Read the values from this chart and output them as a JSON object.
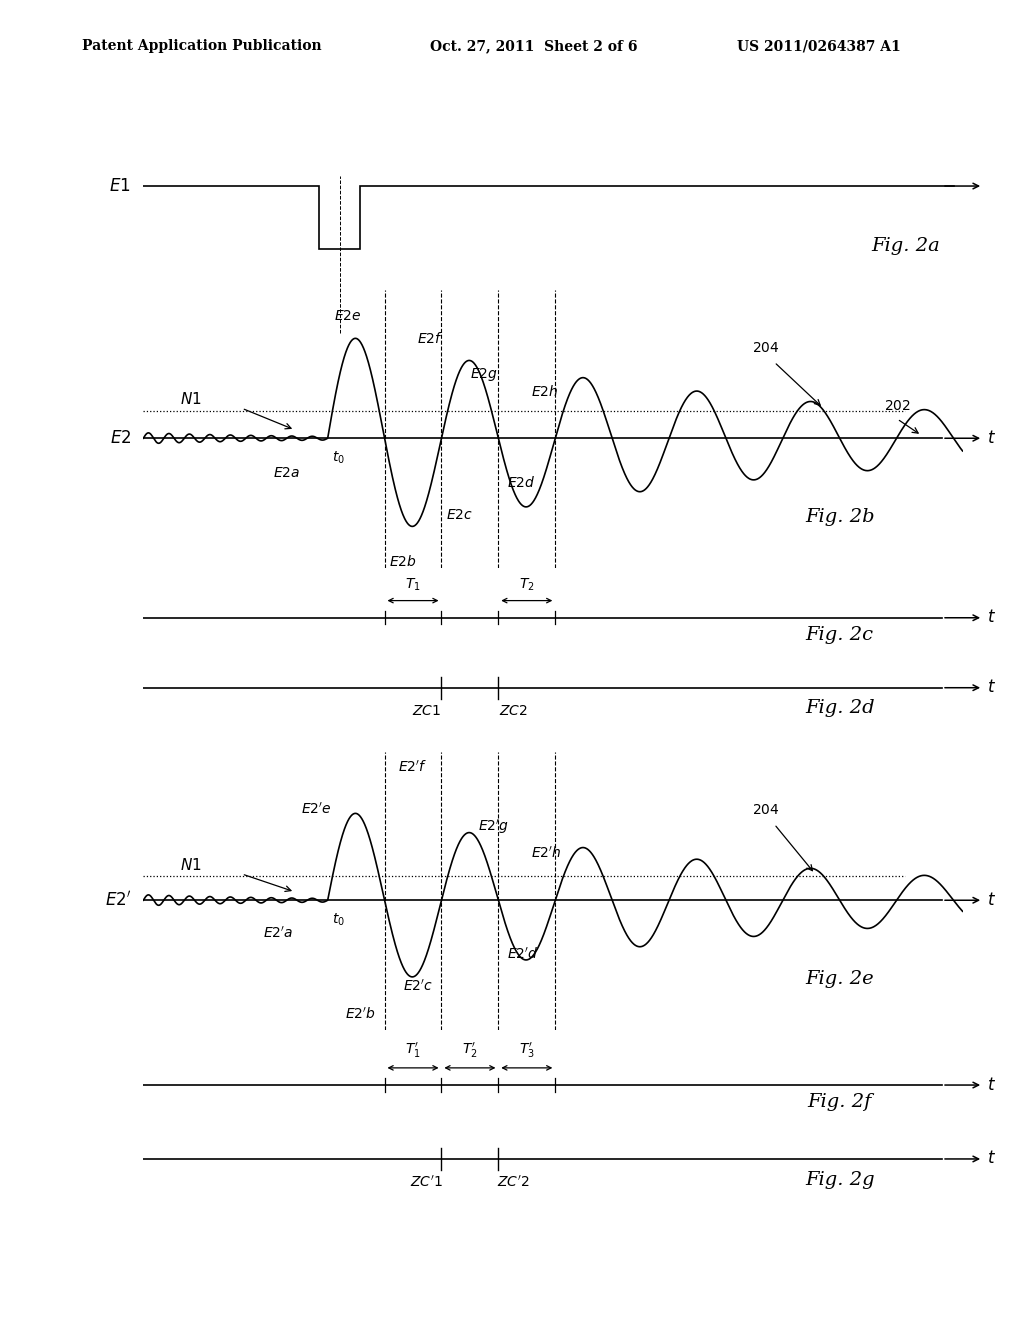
{
  "bg_color": "#ffffff",
  "header_text": "Patent Application Publication",
  "header_date": "Oct. 27, 2011  Sheet 2 of 6",
  "header_patent": "US 2011/0264387 A1",
  "fig2a_label": "Fig. 2a",
  "fig2b_label": "Fig. 2b",
  "fig2c_label": "Fig. 2c",
  "fig2d_label": "Fig. 2d",
  "fig2e_label": "Fig. 2e",
  "fig2f_label": "Fig. 2f",
  "fig2g_label": "Fig. 2g",
  "line_color": "#000000",
  "font_size_label": 12,
  "font_size_fig": 14,
  "font_size_tick": 10
}
